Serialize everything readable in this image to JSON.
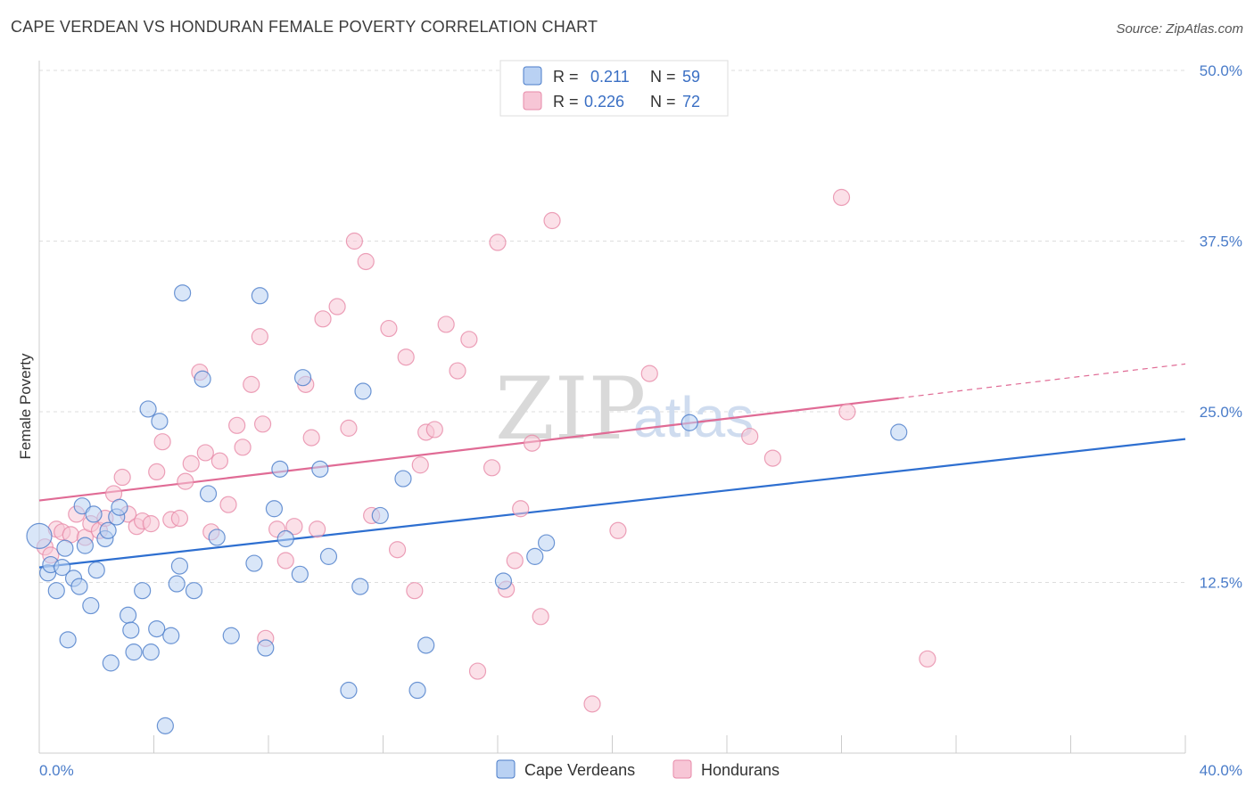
{
  "title": "CAPE VERDEAN VS HONDURAN FEMALE POVERTY CORRELATION CHART",
  "source": "Source: ZipAtlas.com",
  "watermark": {
    "left": "ZIP",
    "right": "atlas"
  },
  "colors": {
    "blue": "#4a7cc9",
    "blue_fill": "#b9d1f3",
    "blue_line": "#2e6fd0",
    "pink": "#e789a8",
    "pink_fill": "#f7c6d6",
    "pink_line": "#e06b95",
    "grid": "#dddddd"
  },
  "legend_top": {
    "rows": [
      {
        "r_label": "R =",
        "r_value": "0.211",
        "n_label": "N =",
        "n_value": "59"
      },
      {
        "r_label": "R =",
        "r_value": "0.226",
        "n_label": "N =",
        "n_value": "72"
      }
    ]
  },
  "chart_data": {
    "type": "scatter",
    "title": "CAPE VERDEAN VS HONDURAN FEMALE POVERTY CORRELATION CHART",
    "xlabel": "",
    "ylabel": "Female Poverty",
    "xlim": [
      0,
      40
    ],
    "ylim": [
      0,
      50
    ],
    "x_tick_labels": [
      "0.0%",
      "40.0%"
    ],
    "y_ticks": [
      12.5,
      25.0,
      37.5,
      50.0
    ],
    "y_tick_labels": [
      "12.5%",
      "25.0%",
      "37.5%",
      "50.0%"
    ],
    "grid": true,
    "legend_position": "bottom",
    "series": [
      {
        "name": "Cape Verdeans",
        "r": 0.211,
        "n": 59,
        "trend": {
          "x": [
            0,
            40
          ],
          "y": [
            13.6,
            23.0
          ]
        },
        "points": [
          [
            0.0,
            15.9
          ],
          [
            0.3,
            13.2
          ],
          [
            0.4,
            13.8
          ],
          [
            0.6,
            11.9
          ],
          [
            0.8,
            13.6
          ],
          [
            0.9,
            15.0
          ],
          [
            1.0,
            8.3
          ],
          [
            1.2,
            12.8
          ],
          [
            1.4,
            12.2
          ],
          [
            1.5,
            18.1
          ],
          [
            1.6,
            15.2
          ],
          [
            1.8,
            10.8
          ],
          [
            1.9,
            17.5
          ],
          [
            2.0,
            13.4
          ],
          [
            2.3,
            15.7
          ],
          [
            2.4,
            16.3
          ],
          [
            2.5,
            6.6
          ],
          [
            2.7,
            17.3
          ],
          [
            2.8,
            18.0
          ],
          [
            3.1,
            10.1
          ],
          [
            3.2,
            9.0
          ],
          [
            3.3,
            7.4
          ],
          [
            3.6,
            11.9
          ],
          [
            3.8,
            25.2
          ],
          [
            3.9,
            7.4
          ],
          [
            4.1,
            9.1
          ],
          [
            4.2,
            24.3
          ],
          [
            4.4,
            2.0
          ],
          [
            4.6,
            8.6
          ],
          [
            4.8,
            12.4
          ],
          [
            4.9,
            13.7
          ],
          [
            5.0,
            33.7
          ],
          [
            5.4,
            11.9
          ],
          [
            5.7,
            27.4
          ],
          [
            5.9,
            19.0
          ],
          [
            6.2,
            15.8
          ],
          [
            6.7,
            8.6
          ],
          [
            7.5,
            13.9
          ],
          [
            7.7,
            33.5
          ],
          [
            7.9,
            7.7
          ],
          [
            8.2,
            17.9
          ],
          [
            8.4,
            20.8
          ],
          [
            8.6,
            15.7
          ],
          [
            9.1,
            13.1
          ],
          [
            9.2,
            27.5
          ],
          [
            9.8,
            20.8
          ],
          [
            10.1,
            14.4
          ],
          [
            10.8,
            4.6
          ],
          [
            11.2,
            12.2
          ],
          [
            11.3,
            26.5
          ],
          [
            11.9,
            17.4
          ],
          [
            12.7,
            20.1
          ],
          [
            13.2,
            4.6
          ],
          [
            13.5,
            7.9
          ],
          [
            16.2,
            12.6
          ],
          [
            17.3,
            14.4
          ],
          [
            17.7,
            15.4
          ],
          [
            22.7,
            24.2
          ],
          [
            30.0,
            23.5
          ]
        ]
      },
      {
        "name": "Hondurans",
        "r": 0.226,
        "n": 72,
        "trend": {
          "x": [
            0,
            30
          ],
          "y": [
            18.5,
            26.0
          ],
          "dashed_x": [
            30,
            40
          ],
          "dashed_y": [
            26.0,
            28.5
          ]
        },
        "points": [
          [
            0.2,
            15.1
          ],
          [
            0.4,
            14.5
          ],
          [
            0.6,
            16.4
          ],
          [
            0.8,
            16.2
          ],
          [
            1.1,
            16.0
          ],
          [
            1.3,
            17.5
          ],
          [
            1.6,
            15.8
          ],
          [
            1.8,
            16.8
          ],
          [
            2.1,
            16.3
          ],
          [
            2.3,
            17.2
          ],
          [
            2.6,
            19.0
          ],
          [
            2.9,
            20.2
          ],
          [
            3.1,
            17.5
          ],
          [
            3.4,
            16.6
          ],
          [
            3.6,
            17.0
          ],
          [
            3.9,
            16.8
          ],
          [
            4.1,
            20.6
          ],
          [
            4.3,
            22.8
          ],
          [
            4.6,
            17.1
          ],
          [
            4.9,
            17.2
          ],
          [
            5.1,
            19.9
          ],
          [
            5.3,
            21.2
          ],
          [
            5.6,
            27.9
          ],
          [
            5.8,
            22.0
          ],
          [
            6.0,
            16.2
          ],
          [
            6.3,
            21.4
          ],
          [
            6.6,
            18.2
          ],
          [
            6.9,
            24.0
          ],
          [
            7.1,
            22.4
          ],
          [
            7.4,
            27.0
          ],
          [
            7.7,
            30.5
          ],
          [
            7.8,
            24.1
          ],
          [
            7.9,
            8.4
          ],
          [
            8.3,
            16.4
          ],
          [
            8.6,
            14.1
          ],
          [
            8.9,
            16.6
          ],
          [
            9.3,
            27.0
          ],
          [
            9.5,
            23.1
          ],
          [
            9.7,
            16.4
          ],
          [
            9.9,
            31.8
          ],
          [
            10.4,
            32.7
          ],
          [
            10.8,
            23.8
          ],
          [
            11.0,
            37.5
          ],
          [
            11.4,
            36.0
          ],
          [
            11.6,
            17.4
          ],
          [
            12.2,
            31.1
          ],
          [
            12.5,
            14.9
          ],
          [
            12.8,
            29.0
          ],
          [
            13.1,
            11.9
          ],
          [
            13.3,
            21.1
          ],
          [
            13.5,
            23.5
          ],
          [
            13.8,
            23.7
          ],
          [
            14.2,
            31.4
          ],
          [
            14.6,
            28.0
          ],
          [
            15.0,
            30.3
          ],
          [
            15.3,
            6.0
          ],
          [
            15.8,
            20.9
          ],
          [
            16.0,
            37.4
          ],
          [
            16.3,
            12.0
          ],
          [
            16.6,
            14.1
          ],
          [
            16.8,
            17.9
          ],
          [
            17.2,
            22.7
          ],
          [
            17.5,
            10.0
          ],
          [
            17.9,
            39.0
          ],
          [
            19.3,
            3.6
          ],
          [
            20.2,
            16.3
          ],
          [
            21.3,
            27.8
          ],
          [
            24.8,
            23.2
          ],
          [
            25.6,
            21.6
          ],
          [
            28.0,
            40.7
          ],
          [
            28.2,
            25.0
          ],
          [
            31.0,
            6.9
          ]
        ]
      }
    ]
  }
}
